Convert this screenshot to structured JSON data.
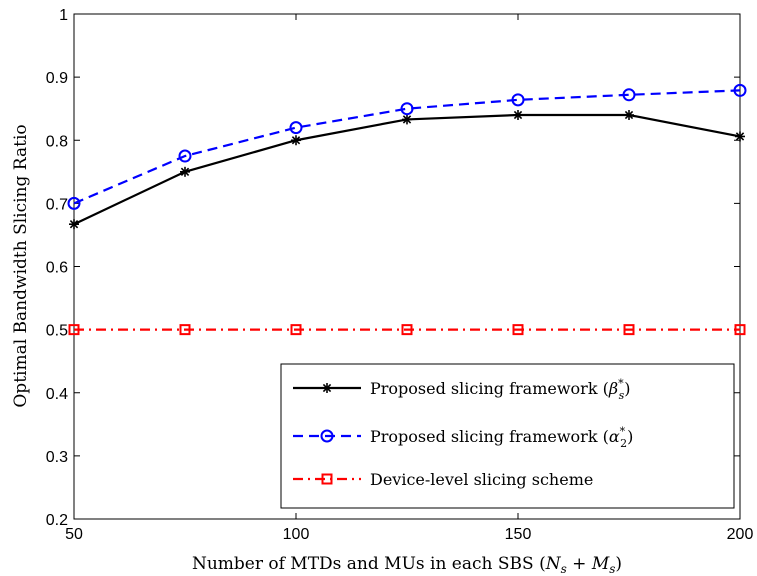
{
  "chart_data": {
    "type": "line",
    "xlabel": "Number of MTDs and MUs in each SBS (N_s + M_s)",
    "ylabel": "Optimal Bandwidth Slicing Ratio",
    "xlim": [
      50,
      200
    ],
    "ylim": [
      0.2,
      1.0
    ],
    "xticks": [
      50,
      100,
      150,
      200
    ],
    "yticks": [
      0.2,
      0.3,
      0.4,
      0.5,
      0.6,
      0.7,
      0.8,
      0.9,
      1.0
    ],
    "ytick_labels": [
      "0.2",
      "0.3",
      "0.4",
      "0.5",
      "0.6",
      "0.7",
      "0.8",
      "0.9",
      "1"
    ],
    "grid": false,
    "legend_position": "bottom-right",
    "x": [
      50,
      75,
      100,
      125,
      150,
      175,
      200
    ],
    "series": [
      {
        "name": "Proposed slicing framework (β_s*)",
        "values": [
          0.667,
          0.75,
          0.8,
          0.833,
          0.84,
          0.84,
          0.806
        ],
        "color": "#000000",
        "dash": "solid",
        "marker": "asterisk"
      },
      {
        "name": "Proposed slicing framework (α_2*)",
        "values": [
          0.7,
          0.775,
          0.82,
          0.85,
          0.864,
          0.872,
          0.879
        ],
        "color": "#0000ff",
        "dash": "dashed",
        "marker": "circle"
      },
      {
        "name": "Device-level slicing scheme",
        "values": [
          0.5,
          0.5,
          0.5,
          0.5,
          0.5,
          0.5,
          0.5
        ],
        "color": "#ff0000",
        "dash": "dashdot",
        "marker": "square"
      }
    ]
  }
}
